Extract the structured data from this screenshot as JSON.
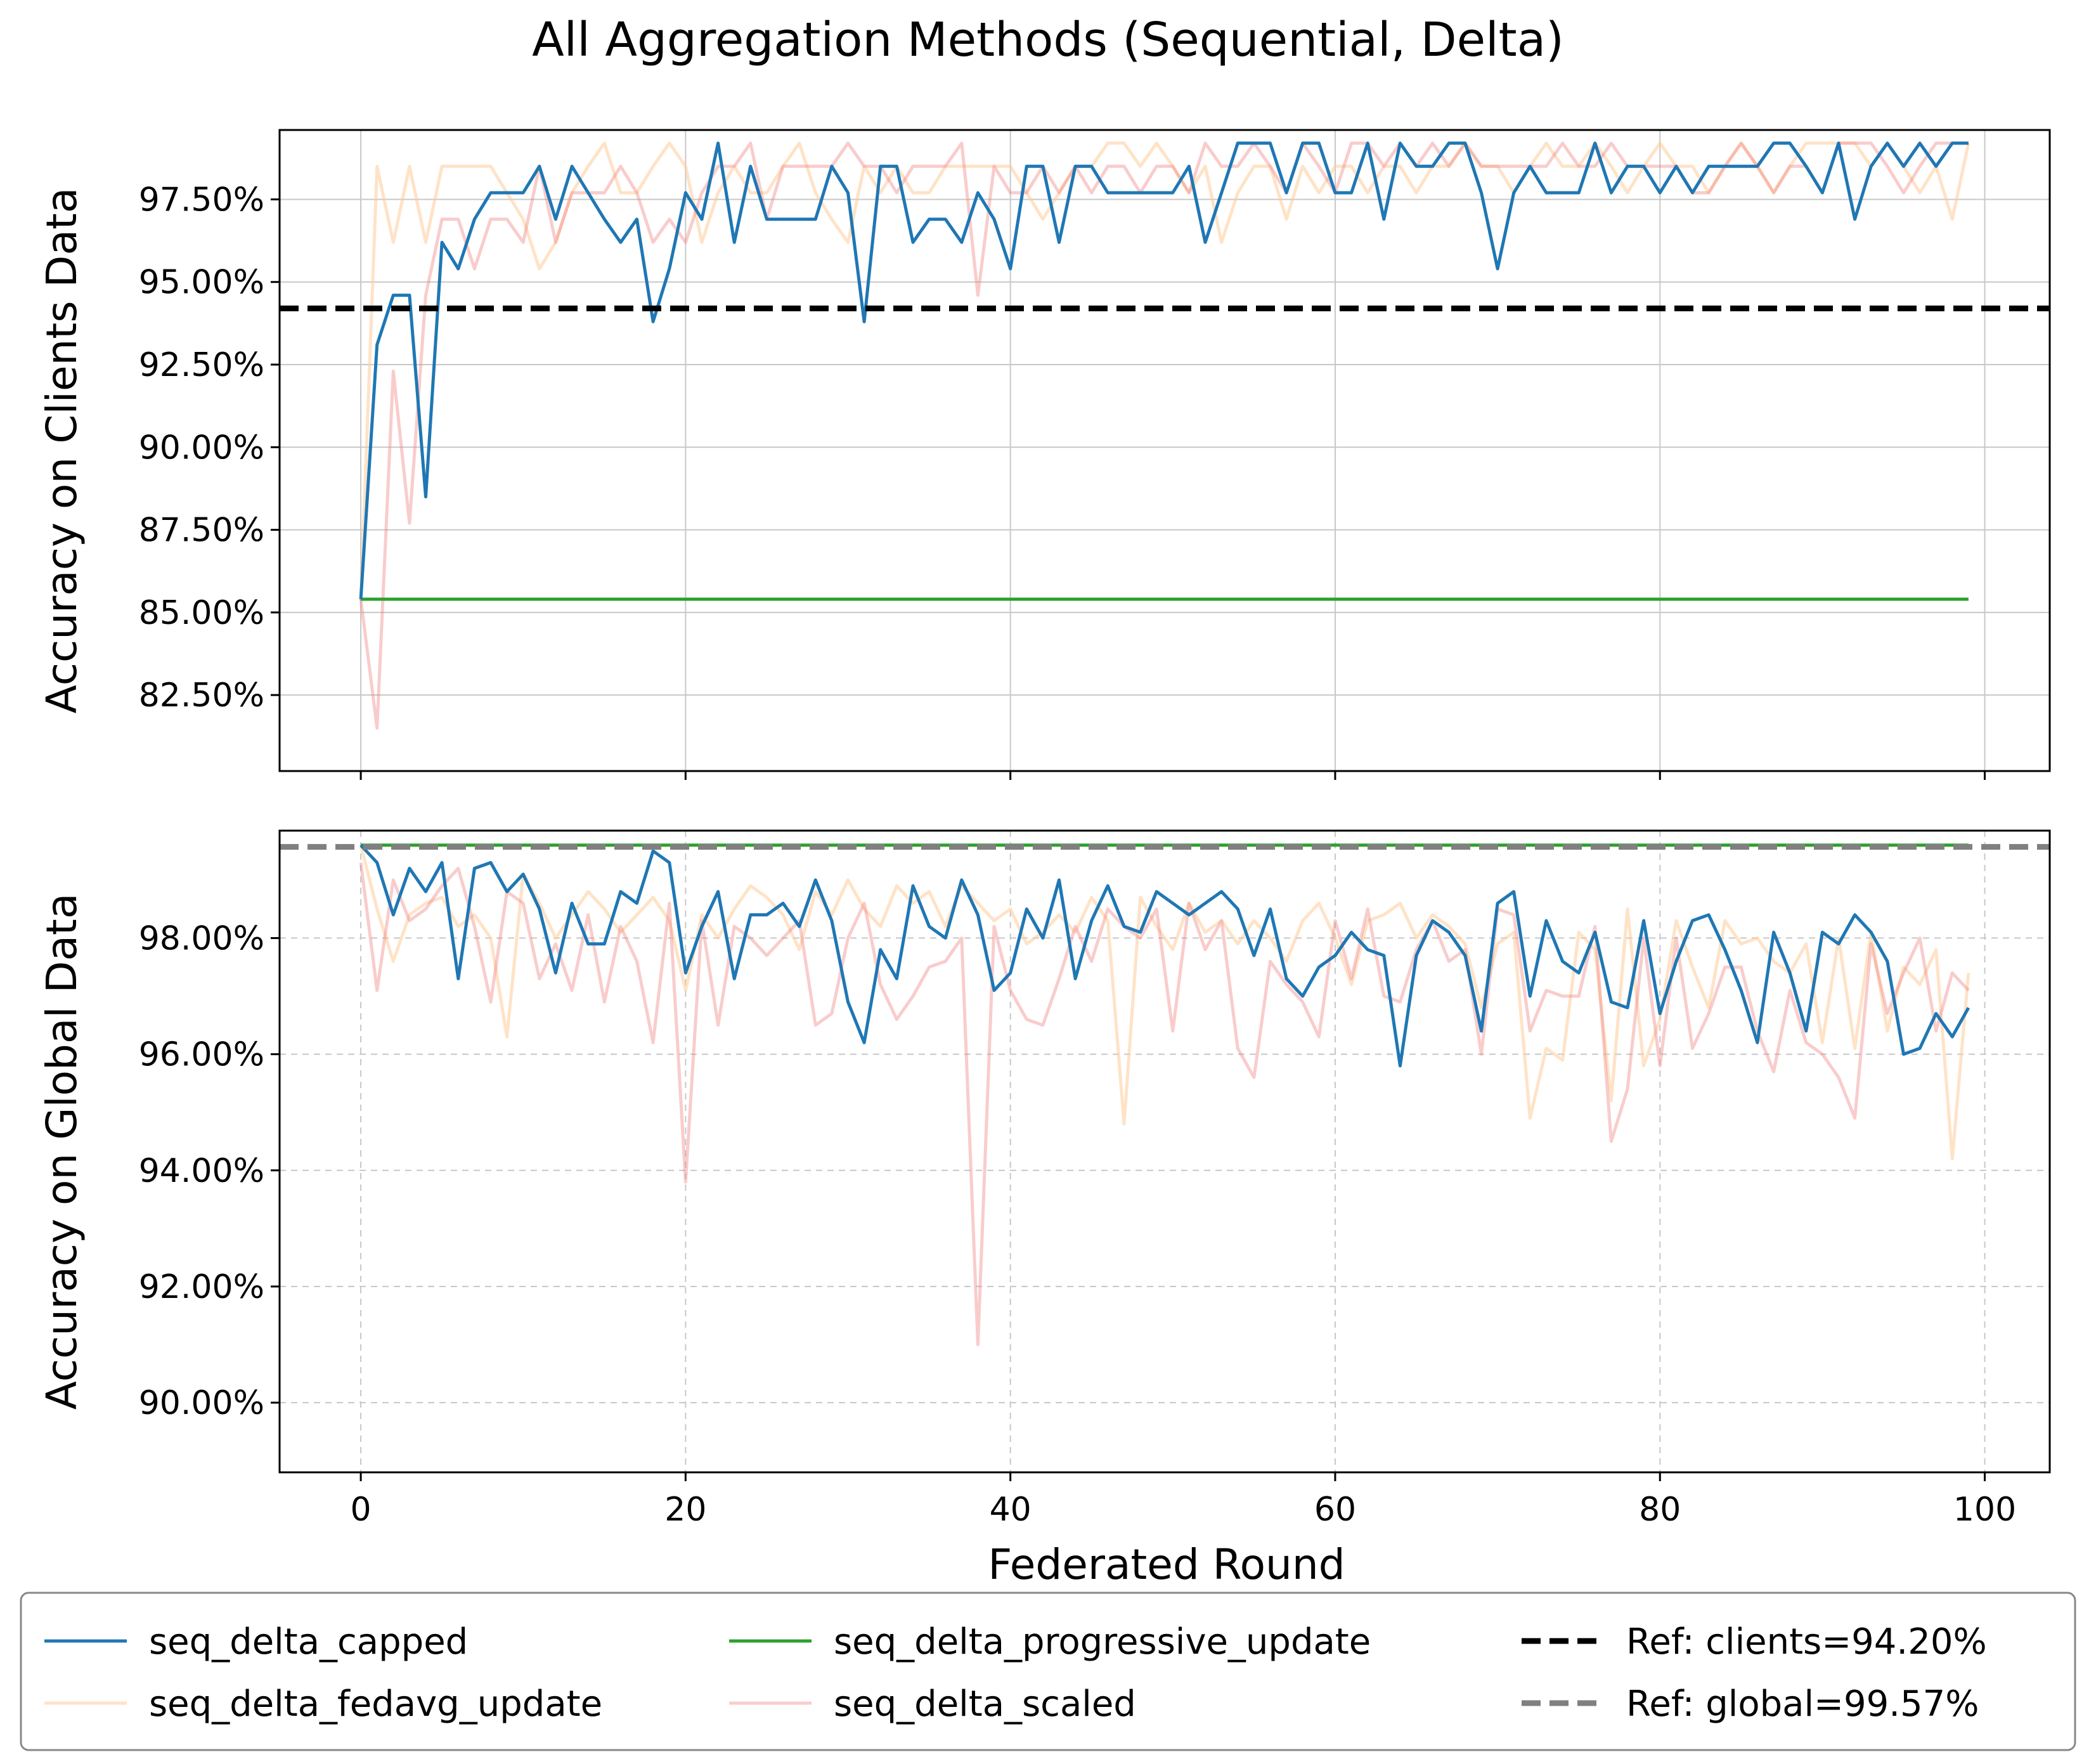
{
  "title": "All Aggregation Methods (Sequential, Delta)",
  "xlabel": "Federated Round",
  "colors": {
    "seq_delta_capped": "#1f77b4",
    "seq_delta_fedavg_update": "#ffcc99",
    "seq_delta_progressive_update": "#2ca02c",
    "seq_delta_scaled": "#f08080",
    "ref_clients": "#000000",
    "ref_global": "#808080"
  },
  "legend": {
    "placement": "below",
    "entries": [
      {
        "key": "seq_delta_capped",
        "label": "seq_delta_capped",
        "style": "solid"
      },
      {
        "key": "seq_delta_fedavg_update",
        "label": "seq_delta_fedavg_update",
        "style": "solid"
      },
      {
        "key": "seq_delta_progressive_update",
        "label": "seq_delta_progressive_update",
        "style": "solid"
      },
      {
        "key": "seq_delta_scaled",
        "label": "seq_delta_scaled",
        "style": "solid"
      },
      {
        "key": "ref_clients",
        "label": "Ref: clients=94.20%",
        "style": "dashed"
      },
      {
        "key": "ref_global",
        "label": "Ref: global=99.57%",
        "style": "dashed"
      }
    ]
  },
  "chart_data": [
    {
      "type": "line",
      "ylabel": "Accuracy on Clients Data",
      "xlim": [
        -5,
        104
      ],
      "ylim": [
        80.2,
        99.6
      ],
      "xticks": [
        0,
        20,
        40,
        60,
        80,
        100
      ],
      "yticks": [
        82.5,
        85.0,
        87.5,
        90.0,
        92.5,
        95.0,
        97.5
      ],
      "ytick_labels": [
        "82.50%",
        "85.00%",
        "87.50%",
        "90.00%",
        "92.50%",
        "95.00%",
        "97.50%"
      ],
      "show_xtick_labels": false,
      "grid": "solid",
      "ref_line": {
        "key": "ref_clients",
        "y": 94.2
      },
      "series": [
        {
          "key": "seq_delta_capped",
          "name": "seq_delta_capped",
          "alpha": 1.0,
          "values": [
            85.4,
            93.1,
            94.6,
            94.6,
            88.5,
            96.2,
            95.4,
            96.9,
            97.7,
            97.7,
            97.7,
            98.5,
            96.9,
            98.5,
            97.7,
            96.9,
            96.2,
            96.9,
            93.8,
            95.4,
            97.7,
            96.9,
            99.2,
            96.2,
            98.5,
            96.9,
            96.9,
            96.9,
            96.9,
            98.5,
            97.7,
            93.8,
            98.5,
            98.5,
            96.2,
            96.9,
            96.9,
            96.2,
            97.7,
            96.9,
            95.4,
            98.5,
            98.5,
            96.2,
            98.5,
            98.5,
            97.7,
            97.7,
            97.7,
            97.7,
            97.7,
            98.5,
            96.2,
            97.7,
            99.2,
            99.2,
            99.2,
            97.7,
            99.2,
            99.2,
            97.7,
            97.7,
            99.2,
            96.9,
            99.2,
            98.5,
            98.5,
            99.2,
            99.2,
            97.7,
            95.4,
            97.7,
            98.5,
            97.7,
            97.7,
            97.7,
            99.2,
            97.7,
            98.5,
            98.5,
            97.7,
            98.5,
            97.7,
            98.5,
            98.5,
            98.5,
            98.5,
            99.2,
            99.2,
            98.5,
            97.7,
            99.2,
            96.9,
            98.5,
            99.2,
            98.5,
            99.2,
            98.5,
            99.2,
            99.2
          ]
        },
        {
          "key": "seq_delta_fedavg_update",
          "name": "seq_delta_fedavg_update",
          "alpha": 0.55,
          "values": [
            85.4,
            98.5,
            96.2,
            98.5,
            96.2,
            98.5,
            98.5,
            98.5,
            98.5,
            97.7,
            96.9,
            95.4,
            96.2,
            97.7,
            98.5,
            99.2,
            97.7,
            97.7,
            98.5,
            99.2,
            98.5,
            96.2,
            97.7,
            98.5,
            97.7,
            97.7,
            98.5,
            99.2,
            97.7,
            96.9,
            96.2,
            98.5,
            97.7,
            98.5,
            97.7,
            97.7,
            98.5,
            98.5,
            98.5,
            98.5,
            98.5,
            97.7,
            96.9,
            97.7,
            98.5,
            98.5,
            99.2,
            99.2,
            98.5,
            99.2,
            98.5,
            97.7,
            98.5,
            96.2,
            97.7,
            98.5,
            98.5,
            96.9,
            98.5,
            97.7,
            98.5,
            98.5,
            97.7,
            98.5,
            98.5,
            97.7,
            98.5,
            98.5,
            99.2,
            98.5,
            98.5,
            97.7,
            98.5,
            99.2,
            98.5,
            98.5,
            99.2,
            98.5,
            97.7,
            98.5,
            99.2,
            98.5,
            98.5,
            97.7,
            98.5,
            99.2,
            98.5,
            97.7,
            98.5,
            99.2,
            99.2,
            99.2,
            99.2,
            98.5,
            99.2,
            98.5,
            97.7,
            98.5,
            96.9,
            99.2
          ]
        },
        {
          "key": "seq_delta_progressive_update",
          "name": "seq_delta_progressive_update",
          "alpha": 1.0,
          "values": [
            85.4,
            85.4,
            85.4,
            85.4,
            85.4,
            85.4,
            85.4,
            85.4,
            85.4,
            85.4,
            85.4,
            85.4,
            85.4,
            85.4,
            85.4,
            85.4,
            85.4,
            85.4,
            85.4,
            85.4,
            85.4,
            85.4,
            85.4,
            85.4,
            85.4,
            85.4,
            85.4,
            85.4,
            85.4,
            85.4,
            85.4,
            85.4,
            85.4,
            85.4,
            85.4,
            85.4,
            85.4,
            85.4,
            85.4,
            85.4,
            85.4,
            85.4,
            85.4,
            85.4,
            85.4,
            85.4,
            85.4,
            85.4,
            85.4,
            85.4,
            85.4,
            85.4,
            85.4,
            85.4,
            85.4,
            85.4,
            85.4,
            85.4,
            85.4,
            85.4,
            85.4,
            85.4,
            85.4,
            85.4,
            85.4,
            85.4,
            85.4,
            85.4,
            85.4,
            85.4,
            85.4,
            85.4,
            85.4,
            85.4,
            85.4,
            85.4,
            85.4,
            85.4,
            85.4,
            85.4,
            85.4,
            85.4,
            85.4,
            85.4,
            85.4,
            85.4,
            85.4,
            85.4,
            85.4,
            85.4,
            85.4,
            85.4,
            85.4,
            85.4,
            85.4,
            85.4,
            85.4,
            85.4,
            85.4,
            85.4
          ]
        },
        {
          "key": "seq_delta_scaled",
          "name": "seq_delta_scaled",
          "alpha": 0.4,
          "values": [
            85.4,
            81.5,
            92.3,
            87.7,
            94.6,
            96.9,
            96.9,
            95.4,
            96.9,
            96.9,
            96.2,
            98.5,
            96.2,
            97.7,
            97.7,
            97.7,
            98.5,
            97.7,
            96.2,
            96.9,
            96.2,
            97.7,
            98.5,
            98.5,
            99.2,
            96.9,
            98.5,
            98.5,
            98.5,
            98.5,
            99.2,
            98.5,
            98.5,
            97.7,
            98.5,
            98.5,
            98.5,
            99.2,
            94.6,
            98.5,
            97.7,
            97.7,
            98.5,
            97.7,
            98.5,
            97.7,
            98.5,
            98.5,
            97.7,
            98.5,
            98.5,
            97.7,
            99.2,
            98.5,
            98.5,
            99.2,
            98.5,
            97.7,
            99.2,
            98.5,
            97.7,
            99.2,
            99.2,
            98.5,
            99.2,
            98.5,
            99.2,
            98.5,
            99.2,
            98.5,
            98.5,
            98.5,
            98.5,
            98.5,
            99.2,
            98.5,
            98.5,
            99.2,
            98.5,
            98.5,
            98.5,
            98.5,
            97.7,
            97.7,
            98.5,
            99.2,
            98.5,
            97.7,
            98.5,
            98.5,
            97.7,
            99.2,
            99.2,
            99.2,
            98.5,
            97.7,
            98.5,
            99.2,
            99.2,
            99.2
          ]
        }
      ]
    },
    {
      "type": "line",
      "ylabel": "Accuracy on Global Data",
      "xlim": [
        -5,
        104
      ],
      "ylim": [
        88.8,
        99.85
      ],
      "xticks": [
        0,
        20,
        40,
        60,
        80,
        100
      ],
      "xtick_labels": [
        "0",
        "20",
        "40",
        "60",
        "80",
        "100"
      ],
      "yticks": [
        90,
        92,
        94,
        96,
        98
      ],
      "ytick_labels": [
        "90.00%",
        "92.00%",
        "94.00%",
        "96.00%",
        "98.00%"
      ],
      "show_xtick_labels": true,
      "grid": "dashed",
      "ref_line": {
        "key": "ref_global",
        "y": 99.57
      },
      "series": [
        {
          "key": "seq_delta_capped",
          "name": "seq_delta_capped",
          "alpha": 1.0,
          "values": [
            99.6,
            99.3,
            98.4,
            99.2,
            98.8,
            99.3,
            97.3,
            99.2,
            99.3,
            98.8,
            99.1,
            98.5,
            97.4,
            98.6,
            97.9,
            97.9,
            98.8,
            98.6,
            99.5,
            99.3,
            97.4,
            98.2,
            98.8,
            97.3,
            98.4,
            98.4,
            98.6,
            98.2,
            99.0,
            98.3,
            96.9,
            96.2,
            97.8,
            97.3,
            98.9,
            98.2,
            98.0,
            99.0,
            98.4,
            97.1,
            97.4,
            98.5,
            98.0,
            99.0,
            97.3,
            98.3,
            98.9,
            98.2,
            98.1,
            98.8,
            98.6,
            98.4,
            98.6,
            98.8,
            98.5,
            97.7,
            98.5,
            97.3,
            97.0,
            97.5,
            97.7,
            98.1,
            97.8,
            97.7,
            95.8,
            97.7,
            98.3,
            98.1,
            97.7,
            96.4,
            98.6,
            98.8,
            97.0,
            98.3,
            97.6,
            97.4,
            98.1,
            96.9,
            96.8,
            98.3,
            96.7,
            97.6,
            98.3,
            98.4,
            97.8,
            97.1,
            96.2,
            98.1,
            97.4,
            96.4,
            98.1,
            97.9,
            98.4,
            98.1,
            97.6,
            96.0,
            96.1,
            96.7,
            96.3,
            96.8
          ]
        },
        {
          "key": "seq_delta_fedavg_update",
          "name": "seq_delta_fedavg_update",
          "alpha": 0.55,
          "values": [
            99.6,
            98.5,
            97.6,
            98.4,
            98.6,
            98.7,
            98.2,
            98.4,
            98.0,
            96.3,
            99.1,
            98.6,
            98.0,
            98.4,
            98.8,
            98.5,
            98.1,
            98.4,
            98.7,
            98.3,
            97.1,
            98.4,
            98.0,
            98.5,
            98.9,
            98.7,
            98.4,
            97.8,
            98.8,
            98.4,
            99.0,
            98.5,
            98.2,
            98.9,
            98.6,
            98.8,
            98.2,
            98.9,
            98.6,
            98.3,
            98.5,
            97.9,
            98.1,
            98.4,
            98.1,
            98.7,
            98.3,
            94.8,
            98.7,
            98.2,
            97.8,
            98.6,
            98.1,
            98.3,
            97.9,
            98.3,
            98.0,
            97.6,
            98.3,
            98.6,
            98.0,
            97.2,
            98.3,
            98.4,
            98.6,
            98.0,
            98.4,
            98.2,
            97.9,
            96.8,
            97.9,
            98.1,
            94.9,
            96.1,
            95.9,
            98.1,
            97.8,
            95.2,
            98.5,
            95.8,
            96.6,
            98.3,
            97.5,
            96.8,
            98.3,
            97.9,
            98.0,
            97.6,
            97.4,
            97.9,
            96.2,
            98.0,
            96.1,
            98.1,
            96.4,
            97.5,
            97.2,
            97.8,
            94.2,
            97.4
          ]
        },
        {
          "key": "seq_delta_progressive_update",
          "name": "seq_delta_progressive_update",
          "alpha": 1.0,
          "values": [
            99.6,
            99.6,
            99.6,
            99.6,
            99.6,
            99.6,
            99.6,
            99.6,
            99.6,
            99.6,
            99.6,
            99.6,
            99.6,
            99.6,
            99.6,
            99.6,
            99.6,
            99.6,
            99.6,
            99.6,
            99.6,
            99.6,
            99.6,
            99.6,
            99.6,
            99.6,
            99.6,
            99.6,
            99.6,
            99.6,
            99.6,
            99.6,
            99.6,
            99.6,
            99.6,
            99.6,
            99.6,
            99.6,
            99.6,
            99.6,
            99.6,
            99.6,
            99.6,
            99.6,
            99.6,
            99.6,
            99.6,
            99.6,
            99.6,
            99.6,
            99.6,
            99.6,
            99.6,
            99.6,
            99.6,
            99.6,
            99.6,
            99.6,
            99.6,
            99.6,
            99.6,
            99.6,
            99.6,
            99.6,
            99.6,
            99.6,
            99.6,
            99.6,
            99.6,
            99.6,
            99.6,
            99.6,
            99.6,
            99.6,
            99.6,
            99.6,
            99.6,
            99.6,
            99.6,
            99.6,
            99.6,
            99.6,
            99.6,
            99.6,
            99.6,
            99.6,
            99.6,
            99.6,
            99.6,
            99.6,
            99.6,
            99.6,
            99.6,
            99.6,
            99.6,
            99.6,
            99.6,
            99.6,
            99.6,
            99.6
          ]
        },
        {
          "key": "seq_delta_scaled",
          "name": "seq_delta_scaled",
          "alpha": 0.4,
          "values": [
            99.3,
            97.1,
            99.0,
            98.3,
            98.5,
            98.9,
            99.2,
            98.2,
            96.9,
            98.8,
            98.6,
            97.3,
            97.9,
            97.1,
            98.4,
            96.9,
            98.2,
            97.6,
            96.2,
            98.6,
            93.8,
            98.3,
            96.5,
            98.2,
            98.0,
            97.7,
            98.0,
            98.3,
            96.5,
            96.7,
            98.0,
            98.6,
            97.2,
            96.6,
            97.0,
            97.5,
            97.6,
            98.0,
            91.0,
            98.2,
            97.1,
            96.6,
            96.5,
            97.3,
            98.2,
            97.6,
            98.5,
            98.2,
            98.0,
            98.5,
            96.4,
            98.6,
            97.8,
            98.3,
            96.1,
            95.6,
            97.6,
            97.2,
            96.9,
            96.3,
            98.3,
            97.3,
            98.5,
            97.0,
            96.9,
            97.8,
            98.3,
            97.6,
            97.8,
            96.0,
            98.5,
            98.4,
            96.4,
            97.1,
            97.0,
            97.0,
            98.2,
            94.5,
            95.4,
            98.0,
            95.8,
            98.0,
            96.1,
            96.7,
            97.5,
            97.5,
            96.4,
            95.7,
            97.1,
            96.2,
            96.0,
            95.6,
            94.9,
            97.9,
            96.7,
            97.4,
            98.0,
            96.4,
            97.4,
            97.1
          ]
        }
      ]
    }
  ]
}
